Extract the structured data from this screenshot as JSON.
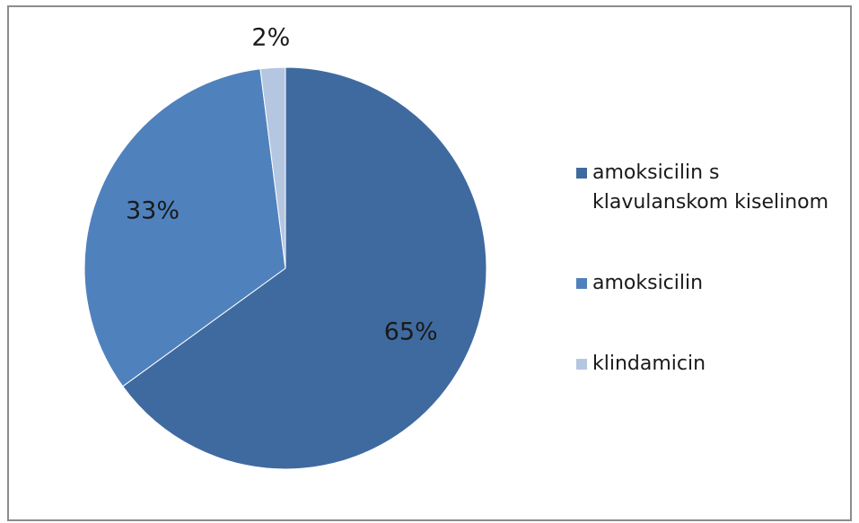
{
  "chart_data": {
    "type": "pie",
    "categories": [
      "amoksicilin s klavulanskom kiselinom",
      "amoksicilin",
      "klindamicin"
    ],
    "values": [
      65,
      33,
      2
    ],
    "data_labels": [
      "65%",
      "33%",
      "2%"
    ],
    "colors": [
      "#3f6aa0",
      "#4f81bd",
      "#b5c6e0"
    ],
    "legend_placement": "right",
    "title": ""
  },
  "legend": {
    "items": [
      {
        "label": "amoksicilin s\nklavulanskom kiselinom",
        "color": "#3f6aa0"
      },
      {
        "label": "amoksicilin",
        "color": "#4f81bd"
      },
      {
        "label": "klindamicin",
        "color": "#b5c6e0"
      }
    ]
  }
}
